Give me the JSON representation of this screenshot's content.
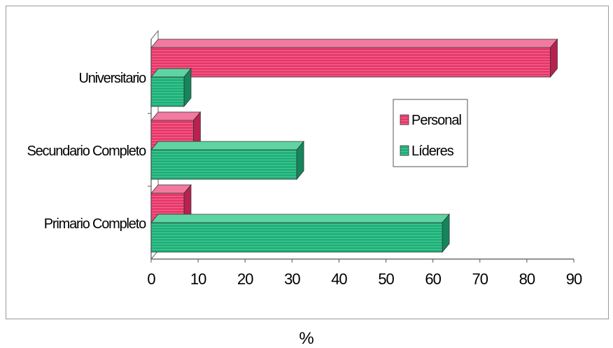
{
  "chart_data": {
    "type": "bar",
    "orientation": "horizontal",
    "categories": [
      "Universitario",
      "Secundario Completo",
      "Primario Completo"
    ],
    "series": [
      {
        "name": "Personal",
        "values": [
          85,
          9,
          7
        ],
        "color": "#e8386a"
      },
      {
        "name": "Líderes",
        "values": [
          7,
          31,
          62
        ],
        "color": "#1fb07a"
      }
    ],
    "xlabel": "%",
    "ylabel": "",
    "xlim": [
      0,
      90
    ],
    "xticks": [
      "0",
      "10",
      "20",
      "30",
      "40",
      "50",
      "60",
      "70",
      "80",
      "90"
    ],
    "legend_position": "right",
    "grid": false,
    "style": "3d"
  }
}
